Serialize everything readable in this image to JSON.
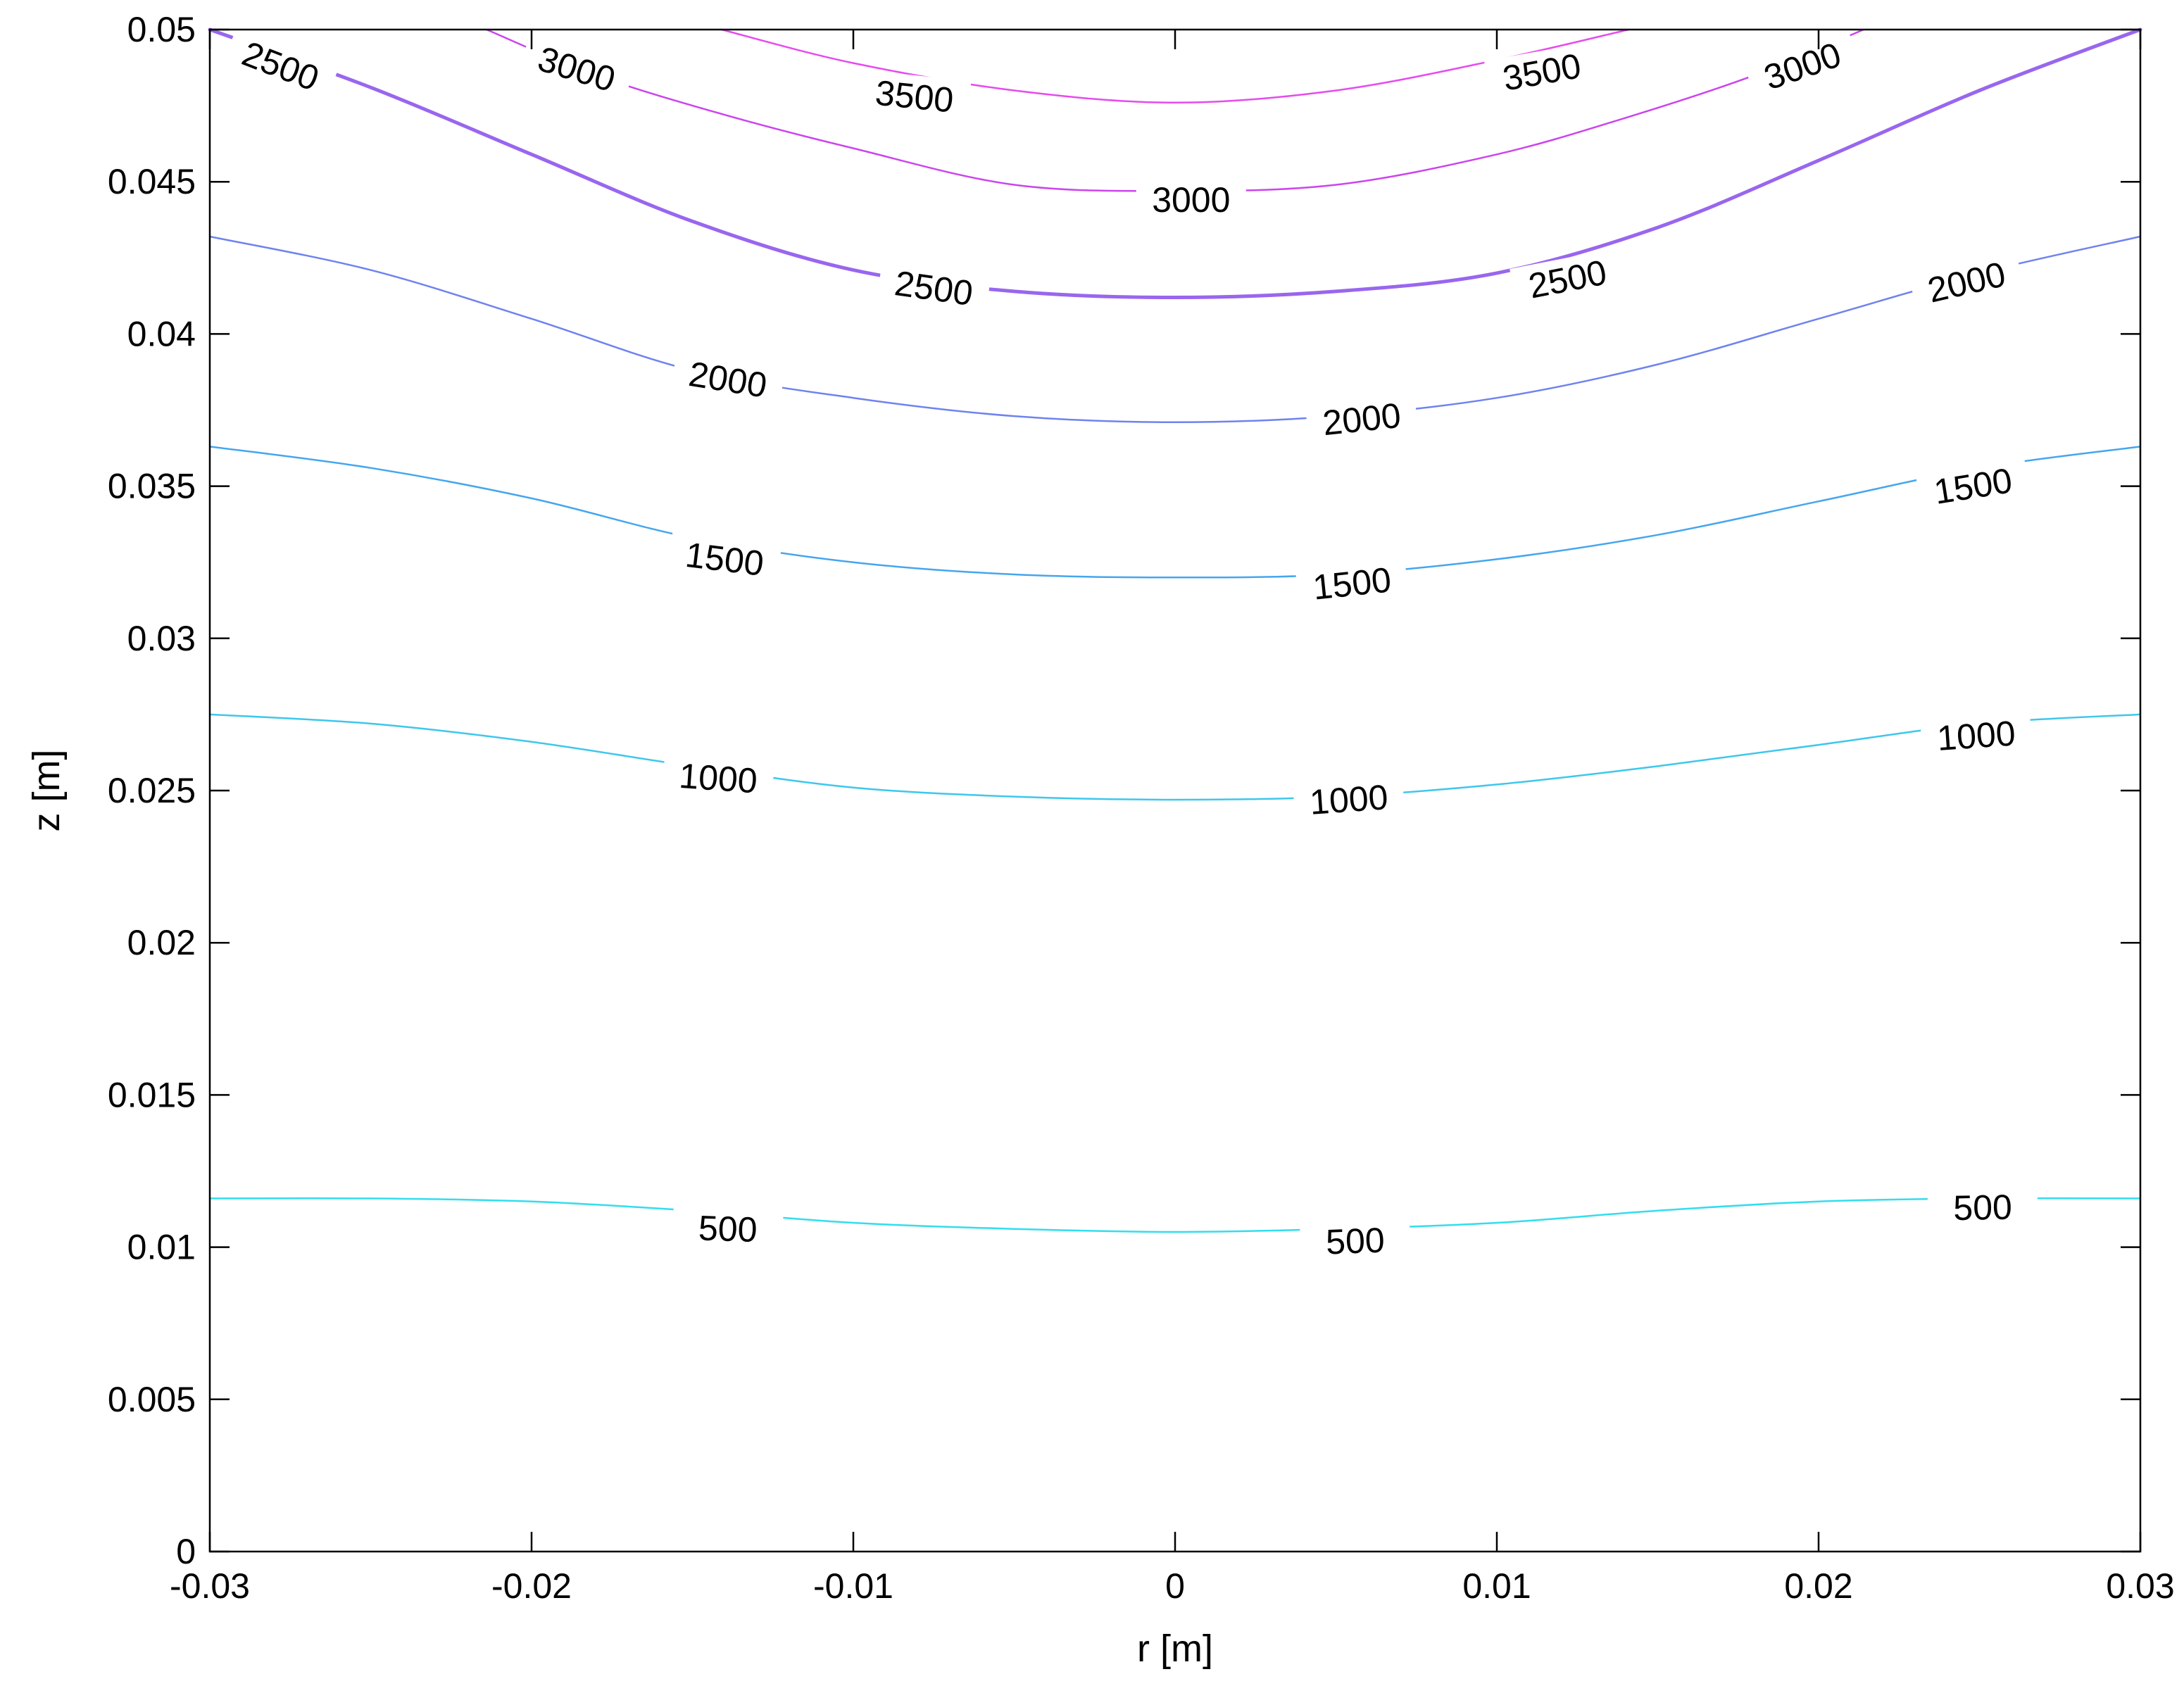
{
  "chart_data": {
    "type": "contour",
    "title": "",
    "xlabel": "r [m]",
    "ylabel": "z [m]",
    "xlim": [
      -0.03,
      0.03
    ],
    "ylim": [
      0,
      0.05
    ],
    "grid": false,
    "x_ticks": [
      {
        "value": -0.03,
        "label": "-0.03"
      },
      {
        "value": -0.02,
        "label": "-0.02"
      },
      {
        "value": -0.01,
        "label": "-0.01"
      },
      {
        "value": 0,
        "label": "0"
      },
      {
        "value": 0.01,
        "label": "0.01"
      },
      {
        "value": 0.02,
        "label": "0.02"
      },
      {
        "value": 0.03,
        "label": "0.03"
      }
    ],
    "y_ticks": [
      {
        "value": 0,
        "label": "0"
      },
      {
        "value": 0.005,
        "label": "0.005"
      },
      {
        "value": 0.01,
        "label": "0.01"
      },
      {
        "value": 0.015,
        "label": "0.015"
      },
      {
        "value": 0.02,
        "label": "0.02"
      },
      {
        "value": 0.025,
        "label": "0.025"
      },
      {
        "value": 0.03,
        "label": "0.03"
      },
      {
        "value": 0.035,
        "label": "0.035"
      },
      {
        "value": 0.04,
        "label": "0.04"
      },
      {
        "value": 0.045,
        "label": "0.045"
      },
      {
        "value": 0.05,
        "label": "0.05"
      }
    ],
    "contours": [
      {
        "level": 500,
        "color": "#33ddee",
        "width": 2.5,
        "points": [
          [
            -0.03,
            0.0116
          ],
          [
            -0.025,
            0.0116
          ],
          [
            -0.02,
            0.0115
          ],
          [
            -0.015,
            0.0112
          ],
          [
            -0.01,
            0.0108
          ],
          [
            -0.005,
            0.0106
          ],
          [
            0,
            0.0105
          ],
          [
            0.005,
            0.0106
          ],
          [
            0.01,
            0.0108
          ],
          [
            0.015,
            0.0112
          ],
          [
            0.02,
            0.0115
          ],
          [
            0.025,
            0.0116
          ],
          [
            0.03,
            0.0116
          ]
        ],
        "labels": [
          {
            "text": "500",
            "x": -0.0139,
            "y": 0.0106,
            "angle": 2
          },
          {
            "text": "500",
            "x": 0.0056,
            "y": 0.0102,
            "angle": -2
          },
          {
            "text": "500",
            "x": 0.0251,
            "y": 0.0113,
            "angle": -1
          }
        ]
      },
      {
        "level": 1000,
        "color": "#3ec7ec",
        "width": 2.5,
        "points": [
          [
            -0.03,
            0.0275
          ],
          [
            -0.025,
            0.0272
          ],
          [
            -0.02,
            0.0266
          ],
          [
            -0.015,
            0.0258
          ],
          [
            -0.01,
            0.0251
          ],
          [
            -0.005,
            0.0248
          ],
          [
            0,
            0.0247
          ],
          [
            0.005,
            0.0248
          ],
          [
            0.01,
            0.0252
          ],
          [
            0.015,
            0.0258
          ],
          [
            0.02,
            0.0265
          ],
          [
            0.025,
            0.0272
          ],
          [
            0.03,
            0.0275
          ]
        ],
        "labels": [
          {
            "text": "1000",
            "x": -0.0142,
            "y": 0.0254,
            "angle": 4
          },
          {
            "text": "1000",
            "x": 0.0054,
            "y": 0.0247,
            "angle": -4
          },
          {
            "text": "1000",
            "x": 0.0249,
            "y": 0.0268,
            "angle": -4
          }
        ]
      },
      {
        "level": 1500,
        "color": "#45a6ee",
        "width": 2.5,
        "points": [
          [
            -0.03,
            0.0363
          ],
          [
            -0.025,
            0.0356
          ],
          [
            -0.02,
            0.0346
          ],
          [
            -0.015,
            0.0333
          ],
          [
            -0.01,
            0.0325
          ],
          [
            -0.005,
            0.0321
          ],
          [
            0,
            0.032
          ],
          [
            0.005,
            0.0321
          ],
          [
            0.01,
            0.0326
          ],
          [
            0.015,
            0.0334
          ],
          [
            0.02,
            0.0345
          ],
          [
            0.025,
            0.0356
          ],
          [
            0.03,
            0.0363
          ]
        ],
        "labels": [
          {
            "text": "1500",
            "x": -0.014,
            "y": 0.0326,
            "angle": 7
          },
          {
            "text": "1500",
            "x": 0.0055,
            "y": 0.0318,
            "angle": -6
          },
          {
            "text": "1500",
            "x": 0.0248,
            "y": 0.035,
            "angle": -9
          }
        ]
      },
      {
        "level": 2000,
        "color": "#6f83ee",
        "width": 2.5,
        "points": [
          [
            -0.03,
            0.0432
          ],
          [
            -0.025,
            0.0421
          ],
          [
            -0.02,
            0.0405
          ],
          [
            -0.015,
            0.0388
          ],
          [
            -0.01,
            0.0379
          ],
          [
            -0.005,
            0.0373
          ],
          [
            0,
            0.0371
          ],
          [
            0.005,
            0.0373
          ],
          [
            0.01,
            0.0379
          ],
          [
            0.015,
            0.039
          ],
          [
            0.02,
            0.0405
          ],
          [
            0.025,
            0.042
          ],
          [
            0.03,
            0.0432
          ]
        ],
        "labels": [
          {
            "text": "2000",
            "x": -0.0139,
            "y": 0.0385,
            "angle": 9
          },
          {
            "text": "2000",
            "x": 0.0058,
            "y": 0.0372,
            "angle": -6
          },
          {
            "text": "2000",
            "x": 0.0246,
            "y": 0.0417,
            "angle": -13
          }
        ]
      },
      {
        "level": 2500,
        "color": "#9966ee",
        "width": 5,
        "points": [
          [
            -0.03,
            0.05
          ],
          [
            -0.025,
            0.0481
          ],
          [
            -0.02,
            0.0459
          ],
          [
            -0.015,
            0.0437
          ],
          [
            -0.01,
            0.0421
          ],
          [
            -0.005,
            0.0414
          ],
          [
            0,
            0.0412
          ],
          [
            0.005,
            0.0414
          ],
          [
            0.01,
            0.042
          ],
          [
            0.015,
            0.0435
          ],
          [
            0.02,
            0.0457
          ],
          [
            0.025,
            0.048
          ],
          [
            0.03,
            0.05
          ]
        ],
        "labels": [
          {
            "text": "2500",
            "x": -0.0278,
            "y": 0.0488,
            "angle": 21
          },
          {
            "text": "2500",
            "x": -0.0075,
            "y": 0.0415,
            "angle": 8
          },
          {
            "text": "2500",
            "x": 0.0122,
            "y": 0.0418,
            "angle": -11
          }
        ]
      },
      {
        "level": 3000,
        "color": "#cc44ee",
        "width": 2.5,
        "points": [
          [
            -0.0214,
            0.05
          ],
          [
            -0.018,
            0.0485
          ],
          [
            -0.014,
            0.0472
          ],
          [
            -0.01,
            0.0461
          ],
          [
            -0.005,
            0.0449
          ],
          [
            0,
            0.0447
          ],
          [
            0.005,
            0.0449
          ],
          [
            0.01,
            0.0459
          ],
          [
            0.014,
            0.0471
          ],
          [
            0.018,
            0.0485
          ],
          [
            0.0214,
            0.05
          ]
        ],
        "labels": [
          {
            "text": "3000",
            "x": -0.0186,
            "y": 0.0487,
            "angle": 17
          },
          {
            "text": "3000",
            "x": 0.0005,
            "y": 0.0444,
            "angle": 0
          },
          {
            "text": "3000",
            "x": 0.0195,
            "y": 0.0488,
            "angle": -19
          }
        ]
      },
      {
        "level": 3500,
        "color": "#e64bee",
        "width": 2.5,
        "points": [
          [
            -0.0141,
            0.05
          ],
          [
            -0.01,
            0.0489
          ],
          [
            -0.005,
            0.048
          ],
          [
            0,
            0.0476
          ],
          [
            0.005,
            0.048
          ],
          [
            0.01,
            0.049
          ],
          [
            0.0141,
            0.05
          ]
        ],
        "labels": [
          {
            "text": "3500",
            "x": -0.0081,
            "y": 0.0478,
            "angle": 6
          },
          {
            "text": "3500",
            "x": 0.0114,
            "y": 0.0486,
            "angle": -10
          }
        ]
      }
    ]
  }
}
